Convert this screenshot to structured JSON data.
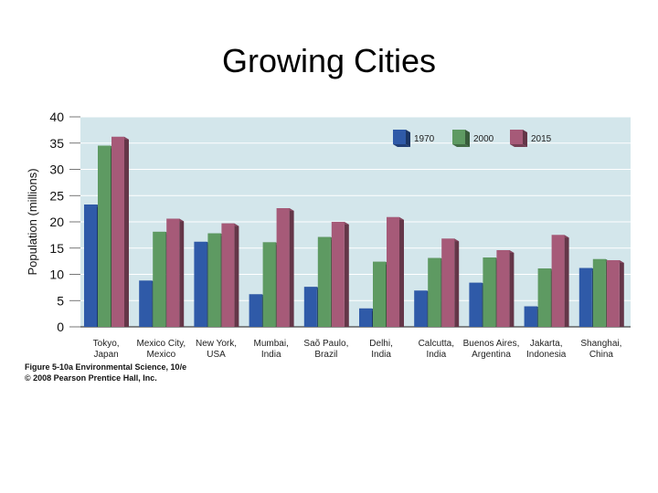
{
  "slide": {
    "title": "Growing Cities"
  },
  "caption": {
    "line1": "Figure 5-10a Environmental Science, 10/e",
    "line2": "© 2008 Pearson Prentice Hall, Inc."
  },
  "colors": {
    "plot_bg": "#d3e6eb",
    "series_1970": "#2f5aa8",
    "series_2000": "#5e9a62",
    "series_2015": "#a65a78"
  },
  "chart_data": {
    "type": "bar",
    "title": "",
    "ylabel": "Population (millions)",
    "xlabel": "",
    "ylim": [
      0,
      40
    ],
    "yticks": [
      0,
      5,
      10,
      15,
      20,
      25,
      30,
      35,
      40
    ],
    "grid": true,
    "legend_position": "top-right",
    "categories": [
      [
        "Tokyo,",
        "Japan"
      ],
      [
        "Mexico City,",
        "Mexico"
      ],
      [
        "New York,",
        "USA"
      ],
      [
        "Mumbai,",
        "India"
      ],
      [
        "Saõ Paulo,",
        "Brazil"
      ],
      [
        "Delhi,",
        "India"
      ],
      [
        "Calcutta,",
        "India"
      ],
      [
        "Buenos Aires,",
        "Argentina"
      ],
      [
        "Jakarta,",
        "Indonesia"
      ],
      [
        "Shanghai,",
        "China"
      ]
    ],
    "series": [
      {
        "name": "1970",
        "color": "#2f5aa8",
        "values": [
          23.3,
          8.8,
          16.2,
          6.2,
          7.6,
          3.5,
          6.9,
          8.4,
          3.9,
          11.2
        ]
      },
      {
        "name": "2000",
        "color": "#5e9a62",
        "values": [
          34.5,
          18.1,
          17.8,
          16.1,
          17.1,
          12.4,
          13.1,
          13.2,
          11.1,
          12.9
        ]
      },
      {
        "name": "2015",
        "color": "#a65a78",
        "values": [
          36.2,
          20.6,
          19.7,
          22.6,
          20.0,
          20.9,
          16.8,
          14.6,
          17.5,
          12.7
        ]
      }
    ]
  }
}
